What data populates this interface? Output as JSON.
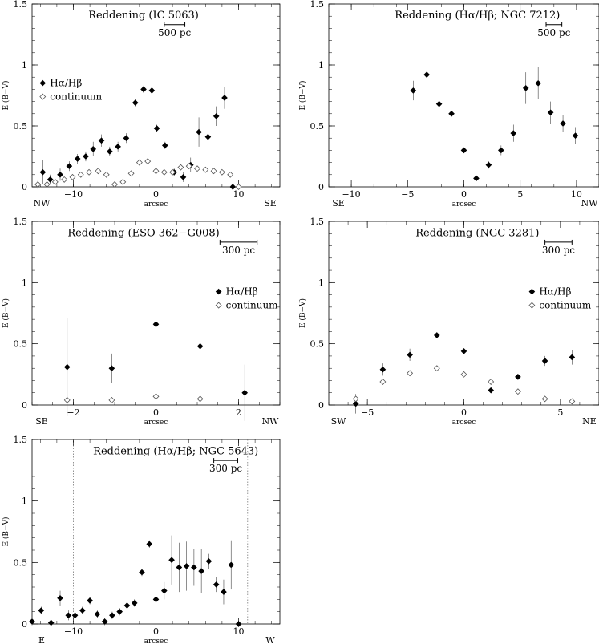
{
  "chart_data": [
    {
      "type": "scatter",
      "title": "Reddening (IC 5063)",
      "xlabel": "arcsec",
      "ylabel": "E (B−V)",
      "xlim": [
        -15,
        15
      ],
      "ylim": [
        0,
        1.5
      ],
      "xticks": [
        -10,
        0,
        10
      ],
      "yticks": [
        0,
        0.5,
        1,
        1.5
      ],
      "direction_left": "NW",
      "direction_right": "SE",
      "scale_bar_label": "500  pc",
      "scale_bar": [
        1.0,
        3.5
      ],
      "legend": [
        "Hα/Hβ",
        "continuum"
      ],
      "series": [
        {
          "name": "Hα/Hβ",
          "marker": "filled-diamond",
          "x": [
            -13.7,
            -12.8,
            -11.6,
            -10.5,
            -9.5,
            -8.5,
            -7.6,
            -6.6,
            -5.6,
            -4.6,
            -3.6,
            -2.5,
            -1.5,
            -0.5,
            0.1,
            1.1,
            2.2,
            3.3,
            4.2,
            5.2,
            6.3,
            7.3,
            8.3,
            9.3
          ],
          "y": [
            0.12,
            0.06,
            0.1,
            0.17,
            0.23,
            0.25,
            0.31,
            0.38,
            0.29,
            0.33,
            0.4,
            0.69,
            0.8,
            0.79,
            0.48,
            0.34,
            0.12,
            0.08,
            0.18,
            0.45,
            0.41,
            0.58,
            0.73,
            0.0
          ],
          "err": [
            0.1,
            0.04,
            0.05,
            0.04,
            0.04,
            0.04,
            0.06,
            0.05,
            0.04,
            0.04,
            0.04,
            0.03,
            0.03,
            0.03,
            0.03,
            0.03,
            0.03,
            0.04,
            0.06,
            0.12,
            0.12,
            0.08,
            0.09,
            0.0
          ]
        },
        {
          "name": "continuum",
          "marker": "open-diamond",
          "x": [
            -14.3,
            -13.2,
            -12.2,
            -11.1,
            -10.1,
            -9.1,
            -8.1,
            -7.0,
            -6.0,
            -5.0,
            -4.0,
            -3.0,
            -2.0,
            -1.0,
            0.0,
            1.0,
            2.0,
            3.0,
            4.0,
            5.0,
            6.0,
            7.0,
            8.0,
            9.0,
            10.0
          ],
          "y": [
            0.02,
            0.02,
            0.04,
            0.06,
            0.08,
            0.1,
            0.12,
            0.13,
            0.1,
            0.02,
            0.04,
            0.11,
            0.2,
            0.21,
            0.13,
            0.12,
            0.12,
            0.16,
            0.17,
            0.15,
            0.14,
            0.13,
            0.12,
            0.1,
            0.0
          ],
          "err": [
            0.04,
            0.02,
            0.02,
            0.02,
            0.02,
            0.02,
            0.02,
            0.02,
            0.02,
            0.02,
            0.02,
            0.02,
            0.02,
            0.02,
            0.02,
            0.02,
            0.02,
            0.02,
            0.02,
            0.02,
            0.02,
            0.02,
            0.02,
            0.02,
            0.0
          ]
        }
      ]
    },
    {
      "type": "scatter",
      "title": "Reddening (Hα/Hβ; NGC 7212)",
      "xlabel": "arcsec",
      "ylabel": "E (B−V)",
      "xlim": [
        -12,
        12
      ],
      "ylim": [
        0,
        1.5
      ],
      "xticks": [
        -10,
        -5,
        0,
        5,
        10
      ],
      "yticks": [
        0,
        0.5,
        1,
        1.5
      ],
      "direction_left": "SE",
      "direction_right": "NW",
      "scale_bar_label": "500  pc",
      "scale_bar": [
        7.3,
        8.7
      ],
      "series": [
        {
          "name": "",
          "marker": "filled-diamond",
          "x": [
            -4.5,
            -3.3,
            -2.2,
            -1.1,
            0.0,
            1.1,
            2.2,
            3.3,
            4.4,
            5.5,
            6.6,
            7.7,
            8.8,
            9.9
          ],
          "y": [
            0.79,
            0.92,
            0.68,
            0.6,
            0.3,
            0.07,
            0.18,
            0.3,
            0.44,
            0.81,
            0.85,
            0.61,
            0.52,
            0.42
          ],
          "err": [
            0.08,
            0.02,
            0.02,
            0.02,
            0.02,
            0.02,
            0.03,
            0.04,
            0.07,
            0.13,
            0.13,
            0.09,
            0.07,
            0.07
          ]
        }
      ]
    },
    {
      "type": "scatter",
      "title": "Reddening (ESO 362−G008)",
      "xlabel": "arcsec",
      "ylabel": "E (B−V)",
      "xlim": [
        -3,
        3
      ],
      "ylim": [
        0,
        1.5
      ],
      "xticks": [
        -2,
        0,
        2
      ],
      "yticks": [
        0,
        0.5,
        1,
        1.5
      ],
      "direction_left": "SE",
      "direction_right": "NW",
      "scale_bar_label": "300  pc",
      "scale_bar": [
        1.55,
        2.45
      ],
      "legend": [
        "Hα/Hβ",
        "continuum"
      ],
      "series": [
        {
          "name": "Hα/Hβ",
          "marker": "filled-diamond",
          "x": [
            -2.15,
            -1.07,
            0.0,
            1.07,
            2.15
          ],
          "y": [
            0.31,
            0.3,
            0.66,
            0.48,
            0.1
          ],
          "err": [
            0.4,
            0.12,
            0.05,
            0.08,
            0.23
          ]
        },
        {
          "name": "continuum",
          "marker": "open-diamond",
          "x": [
            -2.15,
            -1.07,
            0.0,
            1.07
          ],
          "y": [
            0.04,
            0.04,
            0.07,
            0.05
          ],
          "err": [
            0.0,
            0.0,
            0.0,
            0.0
          ]
        }
      ]
    },
    {
      "type": "scatter",
      "title": "Reddening (NGC 3281)",
      "xlabel": "arcsec",
      "ylabel": "E (B−V)",
      "xlim": [
        -7,
        7
      ],
      "ylim": [
        0,
        1.5
      ],
      "xticks": [
        -5,
        0,
        5
      ],
      "yticks": [
        0,
        0.5,
        1,
        1.5
      ],
      "direction_left": "SW",
      "direction_right": "NE",
      "scale_bar_label": "300  pc",
      "scale_bar": [
        4.2,
        5.6
      ],
      "legend": [
        "Hα/Hβ",
        "continuum"
      ],
      "series": [
        {
          "name": "Hα/Hβ",
          "marker": "filled-diamond",
          "x": [
            -5.6,
            -4.2,
            -2.8,
            -1.4,
            0.0,
            1.4,
            2.8,
            4.2,
            5.6
          ],
          "y": [
            0.01,
            0.29,
            0.41,
            0.57,
            0.44,
            0.12,
            0.23,
            0.36,
            0.39
          ],
          "err": [
            0.08,
            0.05,
            0.05,
            0.02,
            0.02,
            0.02,
            0.02,
            0.04,
            0.06
          ]
        },
        {
          "name": "continuum",
          "marker": "open-diamond",
          "x": [
            -5.6,
            -4.2,
            -2.8,
            -1.4,
            0.0,
            1.4,
            2.8,
            4.2,
            5.6
          ],
          "y": [
            0.05,
            0.19,
            0.26,
            0.3,
            0.25,
            0.19,
            0.11,
            0.05,
            0.03
          ],
          "err": [
            0.0,
            0.0,
            0.0,
            0.0,
            0.0,
            0.0,
            0.0,
            0.0,
            0.0
          ]
        }
      ]
    },
    {
      "type": "scatter",
      "title": "Reddening (Hα/Hβ; NGC 5643)",
      "xlabel": "arcsec",
      "ylabel": "E (B−V)",
      "xlim": [
        -15,
        15
      ],
      "ylim": [
        0,
        1.5
      ],
      "xticks": [
        -10,
        0,
        10
      ],
      "yticks": [
        0,
        0.5,
        1,
        1.5
      ],
      "direction_left": "E",
      "direction_right": "W",
      "scale_bar_label": "300  pc",
      "scale_bar": [
        7.0,
        9.9
      ],
      "vlines": [
        -10.0,
        11.1
      ],
      "series": [
        {
          "name": "",
          "marker": "filled-diamond",
          "x": [
            -15.0,
            -13.9,
            -12.7,
            -11.6,
            -10.6,
            -9.8,
            -8.9,
            -8.0,
            -7.1,
            -6.2,
            -5.3,
            -4.4,
            -3.5,
            -2.6,
            -1.7,
            -0.8,
            0.0,
            1.0,
            1.9,
            2.8,
            3.7,
            4.6,
            5.5,
            6.4,
            7.3,
            8.2,
            9.1,
            10.0
          ],
          "y": [
            0.02,
            0.11,
            0.01,
            0.21,
            0.07,
            0.07,
            0.11,
            0.19,
            0.08,
            0.02,
            0.07,
            0.1,
            0.15,
            0.17,
            0.42,
            0.65,
            0.2,
            0.27,
            0.52,
            0.46,
            0.47,
            0.46,
            0.43,
            0.51,
            0.32,
            0.26,
            0.48,
            0.0
          ],
          "err": [
            0.03,
            0.03,
            0.03,
            0.06,
            0.04,
            0.04,
            0.03,
            0.03,
            0.03,
            0.03,
            0.03,
            0.03,
            0.03,
            0.03,
            0.03,
            0.03,
            0.03,
            0.07,
            0.2,
            0.2,
            0.2,
            0.15,
            0.18,
            0.06,
            0.06,
            0.1,
            0.2,
            0.0
          ]
        }
      ]
    }
  ]
}
